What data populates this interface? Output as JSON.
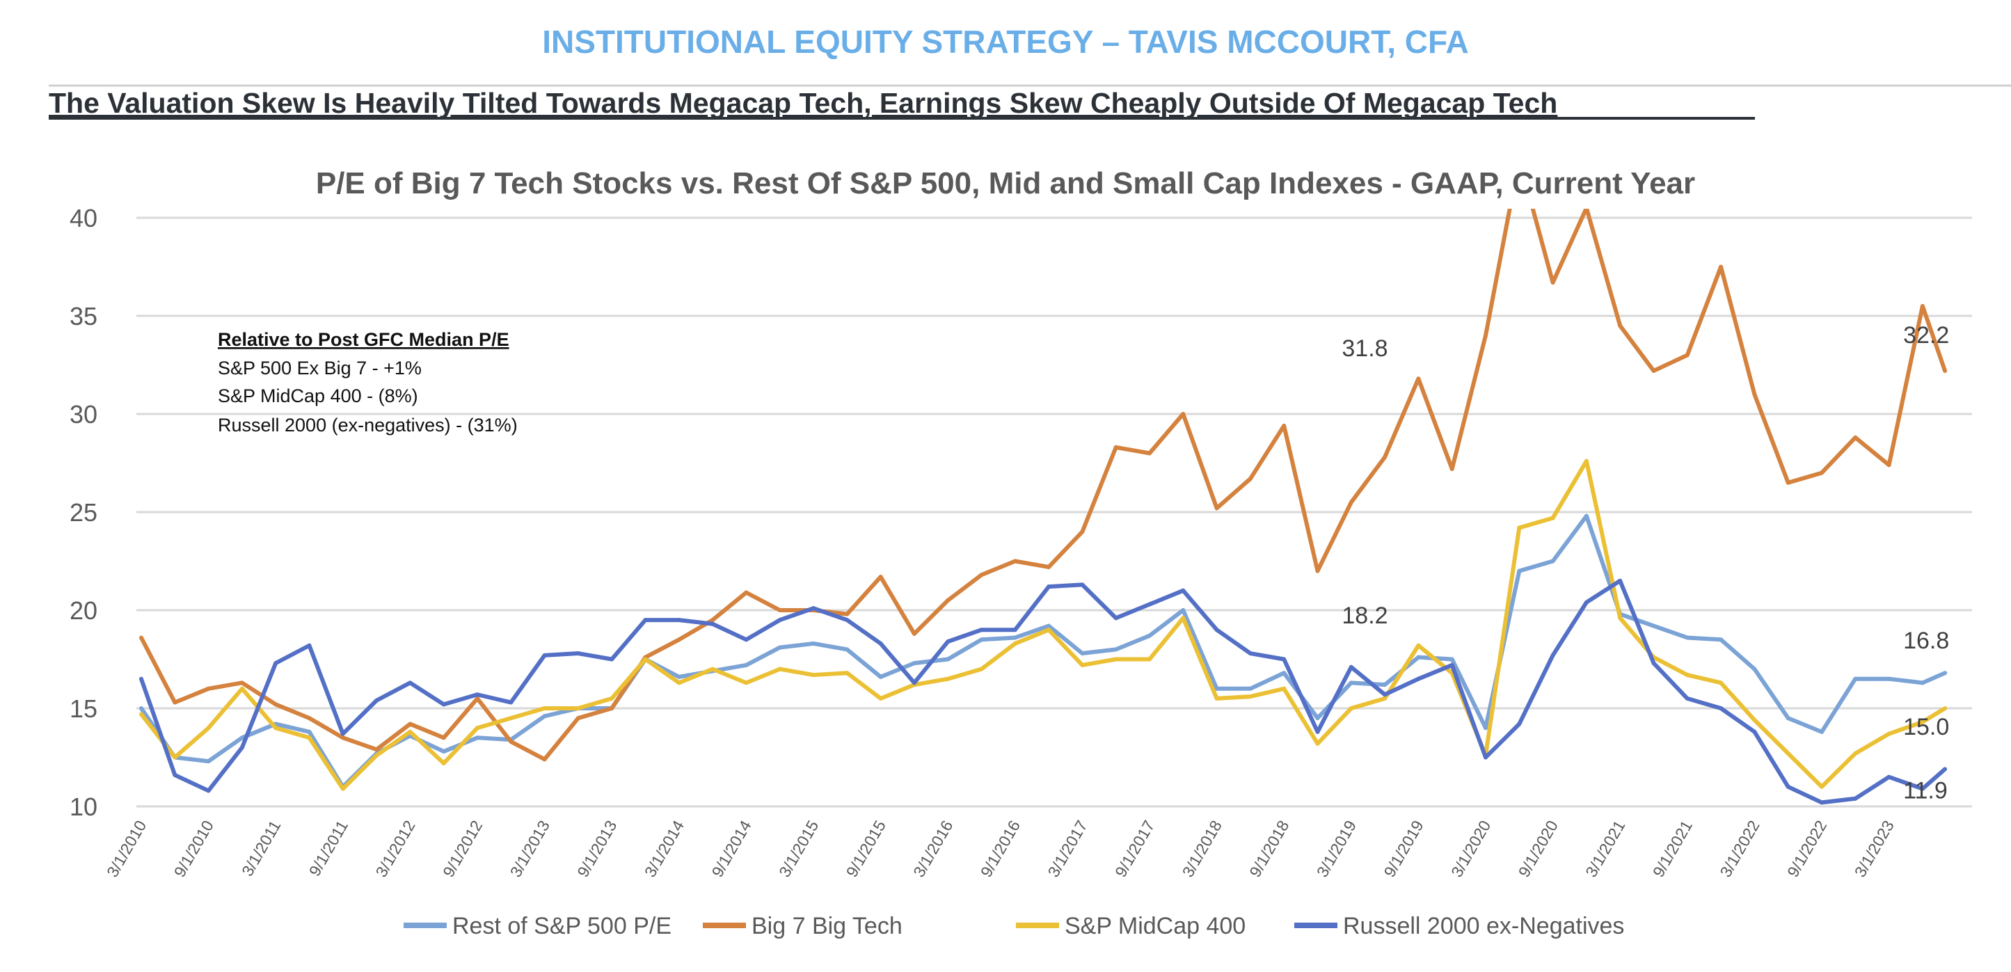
{
  "header": {
    "title": "INSTITUTIONAL EQUITY STRATEGY – TAVIS MCCOURT, CFA",
    "subtitle": "The Valuation Skew Is Heavily Tilted Towards Megacap Tech, Earnings Skew Cheaply Outside Of Megacap Tech",
    "title_color": "#6aaee8"
  },
  "annotation": {
    "heading": "Relative to Post GFC Median P/E",
    "lines": [
      "S&P 500 Ex Big 7 - +1%",
      "S&P MidCap 400 - (8%)",
      "Russell 2000 (ex-negatives) - (31%)"
    ]
  },
  "chart_data": {
    "type": "line",
    "title": "P/E of Big 7 Tech Stocks vs. Rest Of S&P 500, Mid and Small Cap Indexes - GAAP, Current Year",
    "xlabel": "",
    "ylabel": "",
    "ylim": [
      10,
      40
    ],
    "yticks": [
      "10",
      "15",
      "20",
      "25",
      "30",
      "35",
      "40"
    ],
    "grid": true,
    "legend_position": "bottom",
    "xtick_labels": [
      "3/1/2010",
      "9/1/2010",
      "3/1/2011",
      "9/1/2011",
      "3/1/2012",
      "9/1/2012",
      "3/1/2013",
      "9/1/2013",
      "3/1/2014",
      "9/1/2014",
      "3/1/2015",
      "9/1/2015",
      "3/1/2016",
      "9/1/2016",
      "3/1/2017",
      "9/1/2017",
      "3/1/2018",
      "9/1/2018",
      "3/1/2019",
      "9/1/2019",
      "3/1/2020",
      "9/1/2020",
      "3/1/2021",
      "9/1/2021",
      "3/1/2022",
      "9/1/2022",
      "3/1/2023"
    ],
    "x": [
      "2010-03",
      "2010-06",
      "2010-09",
      "2010-12",
      "2011-03",
      "2011-06",
      "2011-09",
      "2011-12",
      "2012-03",
      "2012-06",
      "2012-09",
      "2012-12",
      "2013-03",
      "2013-06",
      "2013-09",
      "2013-12",
      "2014-03",
      "2014-06",
      "2014-09",
      "2014-12",
      "2015-03",
      "2015-06",
      "2015-09",
      "2015-12",
      "2016-03",
      "2016-06",
      "2016-09",
      "2016-12",
      "2017-03",
      "2017-06",
      "2017-09",
      "2017-12",
      "2018-03",
      "2018-06",
      "2018-09",
      "2018-12",
      "2019-03",
      "2019-06",
      "2019-09",
      "2019-12",
      "2020-03",
      "2020-06",
      "2020-09",
      "2020-12",
      "2021-03",
      "2021-06",
      "2021-09",
      "2021-12",
      "2022-03",
      "2022-06",
      "2022-09",
      "2022-12",
      "2023-03",
      "2023-06",
      "2023-08"
    ],
    "series": [
      {
        "name": "Rest of S&P 500 P/E",
        "color": "#7ba3d6",
        "values": [
          15.0,
          12.5,
          12.3,
          13.5,
          14.2,
          13.8,
          11.0,
          12.7,
          13.6,
          12.8,
          13.5,
          13.4,
          14.6,
          15.0,
          15.0,
          17.5,
          16.6,
          16.9,
          17.2,
          18.1,
          18.3,
          18.0,
          16.6,
          17.3,
          17.5,
          18.5,
          18.6,
          19.2,
          17.8,
          18.0,
          18.7,
          20.0,
          16.0,
          16.0,
          16.8,
          14.5,
          16.3,
          16.2,
          17.6,
          17.5,
          14.0,
          22.0,
          22.5,
          24.8,
          19.8,
          19.2,
          18.6,
          18.5,
          17.0,
          14.5,
          13.8,
          16.5,
          16.5,
          16.3,
          16.8
        ]
      },
      {
        "name": "Big 7 Big Tech",
        "color": "#d4823e",
        "values": [
          18.6,
          15.3,
          16.0,
          16.3,
          15.2,
          14.5,
          13.5,
          12.9,
          14.2,
          13.5,
          15.5,
          13.3,
          12.4,
          14.5,
          15.0,
          17.6,
          18.5,
          19.5,
          20.9,
          20.0,
          20.0,
          19.8,
          21.7,
          18.8,
          20.5,
          21.8,
          22.5,
          22.2,
          24.0,
          28.3,
          28.0,
          30.0,
          25.2,
          26.7,
          29.4,
          22.0,
          25.5,
          27.8,
          31.8,
          27.2,
          34.0,
          43.0,
          36.7,
          40.5,
          34.5,
          32.2,
          33.0,
          37.5,
          31.0,
          26.5,
          27.0,
          28.8,
          27.4,
          35.5,
          32.2
        ]
      },
      {
        "name": "S&P MidCap 400",
        "color": "#ebc034",
        "values": [
          14.7,
          12.5,
          14.0,
          16.0,
          14.0,
          13.5,
          10.9,
          12.6,
          13.8,
          12.2,
          14.0,
          14.5,
          15.0,
          15.0,
          15.5,
          17.5,
          16.3,
          17.0,
          16.3,
          17.0,
          16.7,
          16.8,
          15.5,
          16.2,
          16.5,
          17.0,
          18.3,
          19.0,
          17.2,
          17.5,
          17.5,
          19.6,
          15.5,
          15.6,
          16.0,
          13.2,
          15.0,
          15.5,
          18.2,
          16.8,
          12.6,
          24.2,
          24.7,
          27.6,
          19.6,
          17.6,
          16.7,
          16.3,
          14.4,
          12.7,
          11.0,
          12.7,
          13.7,
          14.3,
          15.0
        ]
      },
      {
        "name": "Russell 2000 ex-Negatives",
        "color": "#5470c6",
        "values": [
          16.5,
          11.6,
          10.8,
          13.0,
          17.3,
          18.2,
          13.7,
          15.4,
          16.3,
          15.2,
          15.7,
          15.3,
          17.7,
          17.8,
          17.5,
          19.5,
          19.5,
          19.3,
          18.5,
          19.5,
          20.1,
          19.5,
          18.3,
          16.3,
          18.4,
          19.0,
          19.0,
          21.2,
          21.3,
          19.6,
          20.3,
          21.0,
          19.0,
          17.8,
          17.5,
          13.8,
          17.1,
          15.7,
          16.5,
          17.2,
          12.5,
          14.2,
          17.7,
          20.4,
          21.5,
          17.3,
          15.5,
          15.0,
          13.8,
          11.0,
          10.2,
          10.4,
          11.5,
          10.9,
          11.9
        ]
      }
    ],
    "data_labels": [
      {
        "series": "Big 7 Big Tech",
        "x": "2019-09",
        "text": "31.8"
      },
      {
        "series": "Big 7 Big Tech",
        "x": "2023-08",
        "text": "32.2"
      },
      {
        "series": "S&P MidCap 400",
        "x": "2019-09",
        "text": "18.2"
      },
      {
        "series": "Rest of S&P 500 P/E",
        "x": "2023-08",
        "text": "16.8"
      },
      {
        "series": "S&P MidCap 400",
        "x": "2023-08",
        "text": "15.0"
      },
      {
        "series": "Russell 2000 ex-Negatives",
        "x": "2023-08",
        "text": "11.9"
      }
    ]
  }
}
